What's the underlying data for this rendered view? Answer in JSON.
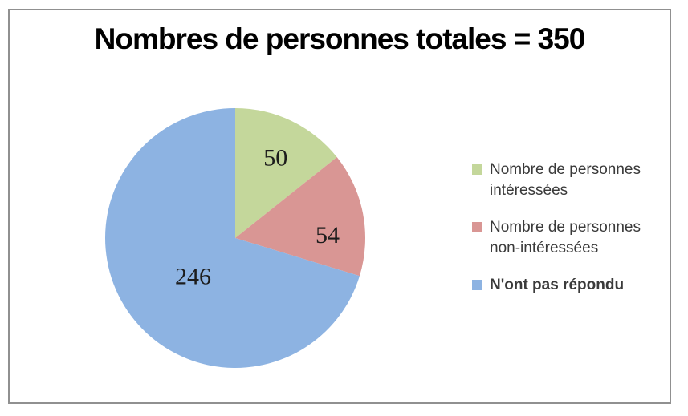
{
  "title": "Nombres de personnes totales = 350",
  "chart_data": {
    "type": "pie",
    "title": "Nombres de personnes totales = 350",
    "total": 350,
    "start_angle_deg": 0,
    "direction": "clockwise",
    "data_labels": "values",
    "legend_position": "right",
    "slices": [
      {
        "label": "Nombre de personnes intéressées",
        "value": 50,
        "color": "#C4D79B"
      },
      {
        "label": "Nombre de personnes non-intéressées",
        "value": 54,
        "color": "#D99694"
      },
      {
        "label": "N'ont pas répondu",
        "value": 246,
        "color": "#8DB3E2"
      }
    ]
  },
  "legend": {
    "items": [
      {
        "label": "Nombre de personnes intéressées",
        "color": "#C4D79B",
        "bold": false
      },
      {
        "label": "Nombre de personnes non-intéressées",
        "color": "#D99694",
        "bold": false
      },
      {
        "label": "N'ont pas répondu",
        "color": "#8DB3E2",
        "bold": true
      }
    ]
  },
  "colors": {
    "frame_border": "#909090",
    "title_text": "#000000",
    "legend_text": "#3A3A3A",
    "data_label_text": "#1C1C1C",
    "background": "#FFFFFF"
  }
}
